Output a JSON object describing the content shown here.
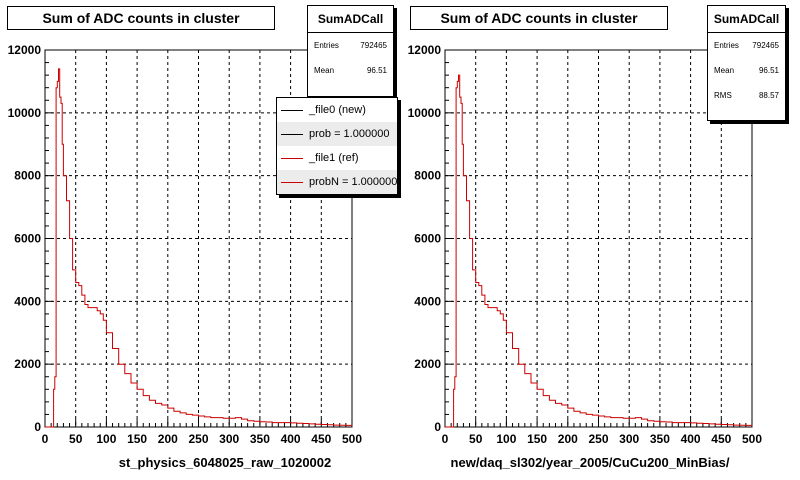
{
  "chart_data": [
    {
      "type": "line",
      "histogram_name": "SumADCall",
      "title": "Sum of ADC counts in cluster",
      "xlabel": "st_physics_6048025_raw_1020002",
      "ylabel": "",
      "xlim": [
        0,
        500
      ],
      "ylim": [
        0,
        12000
      ],
      "x_ticks": [
        "0",
        "50",
        "100",
        "150",
        "200",
        "250",
        "300",
        "350",
        "400",
        "450",
        "500"
      ],
      "y_ticks": [
        "0",
        "2000",
        "4000",
        "6000",
        "8000",
        "10000",
        "12000"
      ],
      "grid": true,
      "stats": {
        "entries_label": "Entries",
        "entries": "792465",
        "mean_label": "Mean",
        "mean": "96.51"
      },
      "legend": [
        {
          "label": "_file0 (new)",
          "color": "#000000"
        },
        {
          "label": "prob = 1.000000",
          "color": "#000000"
        },
        {
          "label": "_file1 (ref)",
          "color": "#cc0000"
        },
        {
          "label": "probN = 1.000000",
          "color": "#cc0000"
        }
      ],
      "series": [
        {
          "name": "_file1 (ref)",
          "color": "#cc0000",
          "x": [
            0,
            8,
            12,
            14,
            16,
            18,
            20,
            22,
            24,
            26,
            28,
            30,
            35,
            40,
            45,
            50,
            55,
            60,
            65,
            70,
            75,
            80,
            85,
            90,
            95,
            100,
            110,
            120,
            130,
            140,
            150,
            160,
            170,
            180,
            190,
            200,
            210,
            220,
            230,
            240,
            250,
            260,
            270,
            280,
            290,
            300,
            310,
            320,
            330,
            340,
            350,
            360,
            370,
            380,
            390,
            400,
            410,
            420,
            430,
            440,
            450,
            460,
            470,
            480,
            490,
            500
          ],
          "y": [
            0,
            0,
            0,
            1200,
            1600,
            10800,
            11000,
            11400,
            10500,
            10300,
            9000,
            8000,
            7200,
            6000,
            5000,
            4600,
            4500,
            4200,
            3900,
            3800,
            3800,
            3800,
            3700,
            3600,
            3400,
            3000,
            2500,
            2000,
            1700,
            1400,
            1200,
            1000,
            850,
            750,
            700,
            600,
            500,
            450,
            400,
            380,
            350,
            320,
            300,
            300,
            280,
            280,
            300,
            250,
            200,
            180,
            170,
            160,
            140,
            140,
            140,
            130,
            120,
            110,
            100,
            90,
            80,
            70,
            60,
            55,
            50,
            40
          ]
        }
      ]
    },
    {
      "type": "line",
      "histogram_name": "SumADCall",
      "title": "Sum of ADC counts in cluster",
      "xlabel": "new/daq_sl302/year_2005/CuCu200_MinBias/",
      "ylabel": "",
      "xlim": [
        0,
        500
      ],
      "ylim": [
        0,
        12000
      ],
      "x_ticks": [
        "0",
        "50",
        "100",
        "150",
        "200",
        "250",
        "300",
        "350",
        "400",
        "450",
        "500"
      ],
      "y_ticks": [
        "0",
        "2000",
        "4000",
        "6000",
        "8000",
        "10000",
        "12000"
      ],
      "grid": true,
      "stats": {
        "entries_label": "Entries",
        "entries": "792465",
        "mean_label": "Mean",
        "mean": "96.51",
        "rms_label": "RMS",
        "rms": "88.57"
      },
      "series": [
        {
          "name": "",
          "color": "#cc0000",
          "x": [
            0,
            8,
            12,
            14,
            16,
            18,
            20,
            22,
            24,
            26,
            28,
            30,
            35,
            40,
            45,
            50,
            55,
            60,
            65,
            70,
            75,
            80,
            85,
            90,
            95,
            100,
            110,
            120,
            130,
            140,
            150,
            160,
            170,
            180,
            190,
            200,
            210,
            220,
            230,
            240,
            250,
            260,
            270,
            280,
            290,
            300,
            310,
            320,
            330,
            340,
            350,
            360,
            370,
            380,
            390,
            400,
            410,
            420,
            430,
            440,
            450,
            460,
            470,
            480,
            490,
            500
          ],
          "y": [
            0,
            0,
            0,
            1200,
            1600,
            10800,
            11000,
            11200,
            10500,
            10300,
            9000,
            8000,
            7200,
            6000,
            5000,
            4600,
            4500,
            4200,
            3900,
            3800,
            3800,
            3800,
            3700,
            3600,
            3400,
            3000,
            2500,
            2000,
            1700,
            1400,
            1200,
            1000,
            850,
            750,
            700,
            600,
            500,
            450,
            400,
            380,
            350,
            320,
            300,
            300,
            280,
            280,
            300,
            250,
            200,
            180,
            170,
            160,
            140,
            140,
            140,
            130,
            120,
            110,
            100,
            90,
            80,
            70,
            60,
            55,
            50,
            40
          ]
        }
      ]
    }
  ]
}
